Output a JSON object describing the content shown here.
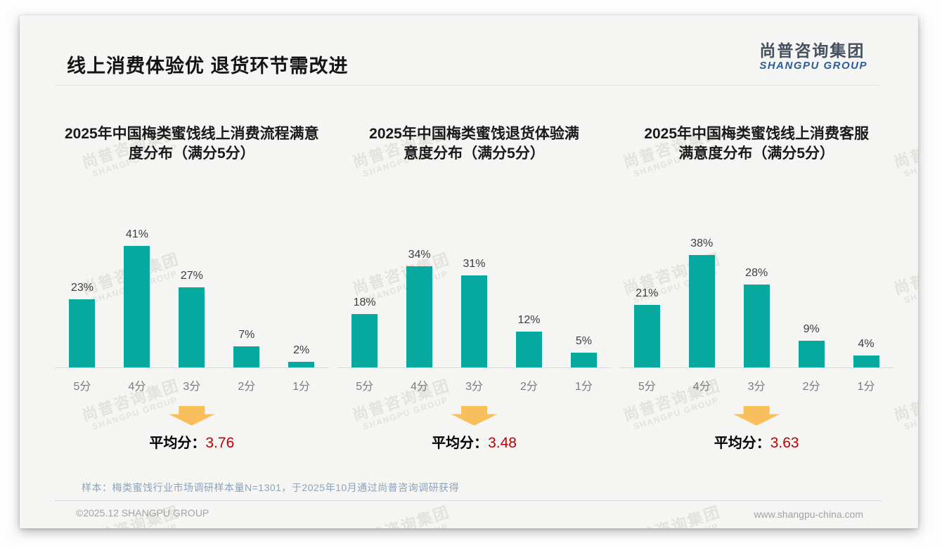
{
  "header": {
    "title": "线上消费体验优 退货环节需改进"
  },
  "logo": {
    "cn": "尚普咨询集团",
    "en": "SHANGPU GROUP"
  },
  "watermark": {
    "cn": "尚普咨询集团",
    "en": "SHANGPU GROUP"
  },
  "colors": {
    "bar": "#07a89d",
    "arrow": "#f9bf5c",
    "avg_value": "#c00000"
  },
  "chart_data": [
    {
      "type": "bar",
      "title": "2025年中国梅类蜜饯线上消费流程满意\n度分布（满分5分）",
      "categories": [
        "5分",
        "4分",
        "3分",
        "2分",
        "1分"
      ],
      "values": [
        23,
        41,
        27,
        7,
        2
      ],
      "value_suffix": "%",
      "ylim": [
        0,
        45
      ],
      "average_label": "平均分：",
      "average": "3.76"
    },
    {
      "type": "bar",
      "title": "2025年中国梅类蜜饯退货体验满\n意度分布（满分5分）",
      "categories": [
        "5分",
        "4分",
        "3分",
        "2分",
        "1分"
      ],
      "values": [
        18,
        34,
        31,
        12,
        5
      ],
      "value_suffix": "%",
      "ylim": [
        0,
        45
      ],
      "average_label": "平均分：",
      "average": "3.48"
    },
    {
      "type": "bar",
      "title": "2025年中国梅类蜜饯线上消费客服\n满意度分布（满分5分）",
      "categories": [
        "5分",
        "4分",
        "3分",
        "2分",
        "1分"
      ],
      "values": [
        21,
        38,
        28,
        9,
        4
      ],
      "value_suffix": "%",
      "ylim": [
        0,
        45
      ],
      "average_label": "平均分：",
      "average": "3.63"
    }
  ],
  "footnote": "样本：梅类蜜饯行业市场调研样本量N=1301，于2025年10月通过尚普咨询调研获得",
  "footer": {
    "left": "©2025.12 SHANGPU GROUP",
    "right": "www.shangpu-china.com"
  }
}
